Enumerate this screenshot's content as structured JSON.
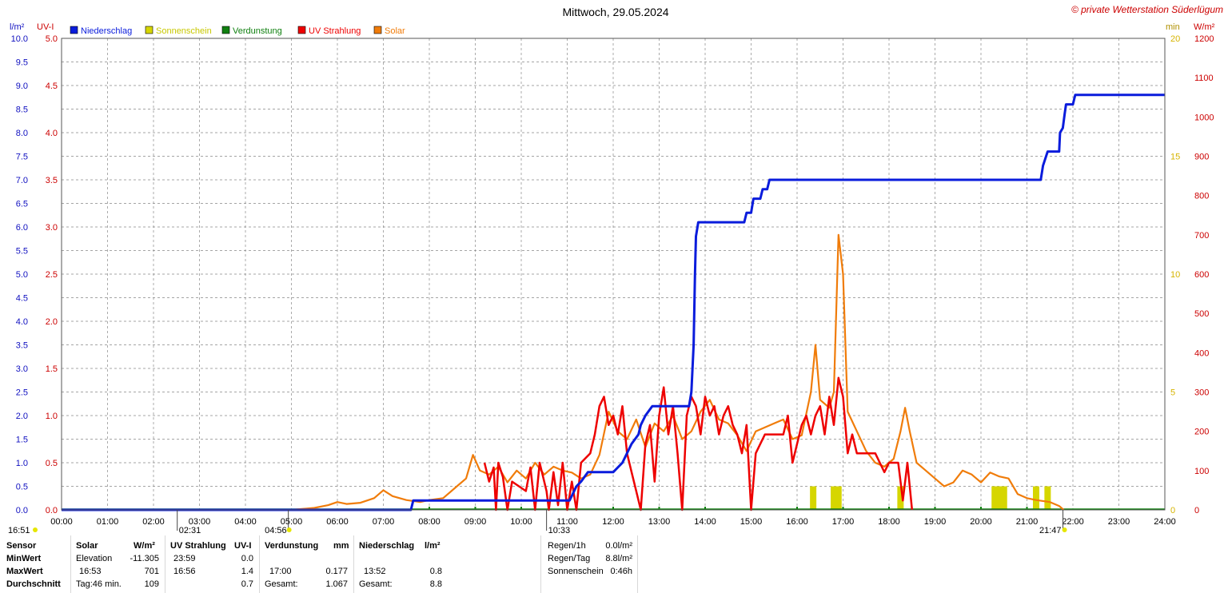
{
  "title": "Mittwoch, 29.05.2024",
  "copyright": "© private Wetterstation Süderlügum",
  "colors": {
    "niederschlag": "#0a1cdc",
    "sonnenschein": "#d6d600",
    "verdunstung": "#108010",
    "uv": "#ee0000",
    "solar": "#f07c0a",
    "grid": "#888888",
    "axis_left1": "#1010c0",
    "axis_left2": "#cc0000",
    "axis_right1": "#d6b400",
    "axis_right2": "#cc0000"
  },
  "legend": [
    {
      "label": "Niederschlag",
      "color": "#0a1cdc"
    },
    {
      "label": "Sonnenschein",
      "color": "#d6d600"
    },
    {
      "label": "Verdunstung",
      "color": "#108010"
    },
    {
      "label": "UV Strahlung",
      "color": "#ee0000"
    },
    {
      "label": "Solar",
      "color": "#f07c0a"
    }
  ],
  "axes": {
    "left1_title": "l/m²",
    "left2_title": "UV-I",
    "right1_title": "min",
    "right2_title": "W/m²",
    "left1_ticks": [
      "10.0",
      "9.5",
      "9.0",
      "8.5",
      "8.0",
      "7.5",
      "7.0",
      "6.5",
      "6.0",
      "5.5",
      "5.0",
      "4.5",
      "4.0",
      "3.5",
      "3.0",
      "2.5",
      "2.0",
      "1.5",
      "1.0",
      "0.5",
      "0.0"
    ],
    "left2_ticks": [
      "5.0",
      "4.5",
      "4.0",
      "3.5",
      "3.0",
      "2.5",
      "2.0",
      "1.5",
      "1.0",
      "0.5",
      "0.0"
    ],
    "right1_ticks": [
      "20",
      "15",
      "10",
      "5",
      "0"
    ],
    "right2_ticks": [
      "1200",
      "1100",
      "1000",
      "900",
      "800",
      "700",
      "600",
      "500",
      "400",
      "300",
      "200",
      "100",
      "0"
    ],
    "x_ticks": [
      "00:00",
      "01:00",
      "02:00",
      "03:00",
      "04:00",
      "05:00",
      "06:00",
      "07:00",
      "08:00",
      "09:00",
      "10:00",
      "11:00",
      "12:00",
      "13:00",
      "14:00",
      "15:00",
      "16:00",
      "17:00",
      "18:00",
      "19:00",
      "20:00",
      "21:00",
      "22:00",
      "23:00",
      "24:00"
    ]
  },
  "markers": {
    "sunrise": "04:56",
    "sunset": "21:47",
    "dawn_start": "16:51",
    "moon_marker": "02:31",
    "noon_marker": "10:33"
  },
  "chart_data": {
    "type": "line",
    "title": "Mittwoch, 29.05.2024",
    "x_unit": "hours",
    "xlim": [
      0,
      24
    ],
    "series": [
      {
        "name": "Niederschlag",
        "unit": "l/m²",
        "axis": "left1",
        "ylim": [
          0,
          10
        ],
        "points": [
          [
            0,
            0
          ],
          [
            7.6,
            0
          ],
          [
            7.65,
            0.2
          ],
          [
            11.05,
            0.2
          ],
          [
            11.1,
            0.3
          ],
          [
            11.2,
            0.5
          ],
          [
            11.3,
            0.6
          ],
          [
            11.45,
            0.8
          ],
          [
            11.95,
            0.8
          ],
          [
            12.0,
            0.8
          ],
          [
            12.2,
            1.0
          ],
          [
            12.4,
            1.4
          ],
          [
            12.55,
            1.6
          ],
          [
            12.6,
            1.8
          ],
          [
            12.7,
            2.0
          ],
          [
            12.85,
            2.2
          ],
          [
            13.65,
            2.2
          ],
          [
            13.7,
            2.5
          ],
          [
            13.75,
            3.5
          ],
          [
            13.78,
            5.0
          ],
          [
            13.8,
            5.8
          ],
          [
            13.85,
            6.1
          ],
          [
            14.85,
            6.1
          ],
          [
            14.9,
            6.3
          ],
          [
            15.0,
            6.3
          ],
          [
            15.05,
            6.6
          ],
          [
            15.2,
            6.6
          ],
          [
            15.25,
            6.8
          ],
          [
            15.35,
            6.8
          ],
          [
            15.4,
            7.0
          ],
          [
            21.3,
            7.0
          ],
          [
            21.35,
            7.3
          ],
          [
            21.45,
            7.6
          ],
          [
            21.7,
            7.6
          ],
          [
            21.72,
            8.0
          ],
          [
            21.78,
            8.1
          ],
          [
            21.82,
            8.4
          ],
          [
            21.85,
            8.6
          ],
          [
            22.0,
            8.6
          ],
          [
            22.05,
            8.8
          ],
          [
            24,
            8.8
          ]
        ]
      },
      {
        "name": "UV Strahlung",
        "unit": "UV-I",
        "axis": "left2",
        "ylim": [
          0,
          5
        ],
        "points": [
          [
            9.2,
            0.5
          ],
          [
            9.3,
            0.3
          ],
          [
            9.4,
            0.45
          ],
          [
            9.45,
            0.0
          ],
          [
            9.5,
            0.5
          ],
          [
            9.6,
            0.35
          ],
          [
            9.7,
            0.0
          ],
          [
            9.8,
            0.3
          ],
          [
            10.1,
            0.2
          ],
          [
            10.2,
            0.45
          ],
          [
            10.3,
            0.0
          ],
          [
            10.4,
            0.5
          ],
          [
            10.55,
            0.2
          ],
          [
            10.6,
            0.0
          ],
          [
            10.7,
            0.4
          ],
          [
            10.8,
            0.05
          ],
          [
            10.9,
            0.5
          ],
          [
            11.0,
            0.0
          ],
          [
            11.1,
            0.3
          ],
          [
            11.2,
            0.0
          ],
          [
            11.3,
            0.5
          ],
          [
            11.5,
            0.6
          ],
          [
            11.6,
            0.8
          ],
          [
            11.7,
            1.1
          ],
          [
            11.8,
            1.2
          ],
          [
            11.9,
            0.9
          ],
          [
            12.0,
            1.0
          ],
          [
            12.1,
            0.8
          ],
          [
            12.2,
            1.1
          ],
          [
            12.3,
            0.6
          ],
          [
            12.4,
            0.4
          ],
          [
            12.5,
            0.2
          ],
          [
            12.6,
            0.0
          ],
          [
            12.7,
            0.7
          ],
          [
            12.8,
            0.9
          ],
          [
            12.9,
            0.3
          ],
          [
            13.0,
            1.0
          ],
          [
            13.1,
            1.3
          ],
          [
            13.2,
            0.8
          ],
          [
            13.3,
            1.1
          ],
          [
            13.4,
            0.6
          ],
          [
            13.5,
            0.0
          ],
          [
            13.6,
            1.0
          ],
          [
            13.7,
            1.2
          ],
          [
            13.8,
            1.1
          ],
          [
            13.9,
            0.8
          ],
          [
            14.0,
            1.2
          ],
          [
            14.1,
            1.0
          ],
          [
            14.2,
            1.1
          ],
          [
            14.3,
            0.8
          ],
          [
            14.4,
            1.0
          ],
          [
            14.5,
            1.1
          ],
          [
            14.6,
            0.9
          ],
          [
            14.7,
            0.8
          ],
          [
            14.8,
            0.6
          ],
          [
            14.9,
            0.9
          ],
          [
            15.0,
            0.0
          ],
          [
            15.1,
            0.6
          ],
          [
            15.2,
            0.7
          ],
          [
            15.3,
            0.8
          ],
          [
            15.5,
            0.8
          ],
          [
            15.7,
            0.8
          ],
          [
            15.8,
            1.0
          ],
          [
            15.9,
            0.5
          ],
          [
            16.0,
            0.7
          ],
          [
            16.1,
            0.9
          ],
          [
            16.2,
            1.0
          ],
          [
            16.3,
            0.8
          ],
          [
            16.4,
            1.0
          ],
          [
            16.5,
            1.1
          ],
          [
            16.6,
            0.8
          ],
          [
            16.7,
            1.2
          ],
          [
            16.8,
            0.9
          ],
          [
            16.9,
            1.4
          ],
          [
            17.0,
            1.2
          ],
          [
            17.1,
            0.6
          ],
          [
            17.2,
            0.8
          ],
          [
            17.3,
            0.6
          ],
          [
            17.5,
            0.6
          ],
          [
            17.7,
            0.6
          ],
          [
            17.8,
            0.5
          ],
          [
            17.9,
            0.4
          ],
          [
            18.0,
            0.5
          ],
          [
            18.2,
            0.5
          ],
          [
            18.3,
            0.1
          ],
          [
            18.4,
            0.5
          ],
          [
            18.5,
            0.0
          ]
        ]
      },
      {
        "name": "Solar",
        "unit": "W/m²",
        "axis": "right2",
        "ylim": [
          0,
          1200
        ],
        "points": [
          [
            5.0,
            0
          ],
          [
            5.5,
            5
          ],
          [
            5.8,
            12
          ],
          [
            6.0,
            20
          ],
          [
            6.2,
            15
          ],
          [
            6.5,
            18
          ],
          [
            6.8,
            30
          ],
          [
            7.0,
            50
          ],
          [
            7.2,
            35
          ],
          [
            7.5,
            25
          ],
          [
            7.8,
            20
          ],
          [
            8.0,
            25
          ],
          [
            8.3,
            30
          ],
          [
            8.6,
            60
          ],
          [
            8.8,
            80
          ],
          [
            8.95,
            140
          ],
          [
            9.1,
            100
          ],
          [
            9.3,
            90
          ],
          [
            9.5,
            110
          ],
          [
            9.7,
            70
          ],
          [
            9.9,
            100
          ],
          [
            10.1,
            80
          ],
          [
            10.3,
            120
          ],
          [
            10.5,
            90
          ],
          [
            10.7,
            110
          ],
          [
            10.9,
            100
          ],
          [
            11.1,
            95
          ],
          [
            11.3,
            80
          ],
          [
            11.5,
            90
          ],
          [
            11.7,
            140
          ],
          [
            11.9,
            250
          ],
          [
            12.1,
            200
          ],
          [
            12.3,
            180
          ],
          [
            12.5,
            230
          ],
          [
            12.7,
            160
          ],
          [
            12.9,
            220
          ],
          [
            13.1,
            200
          ],
          [
            13.3,
            240
          ],
          [
            13.5,
            180
          ],
          [
            13.7,
            200
          ],
          [
            13.9,
            250
          ],
          [
            14.1,
            280
          ],
          [
            14.3,
            230
          ],
          [
            14.5,
            220
          ],
          [
            14.7,
            190
          ],
          [
            14.9,
            150
          ],
          [
            15.1,
            200
          ],
          [
            15.3,
            210
          ],
          [
            15.5,
            220
          ],
          [
            15.7,
            230
          ],
          [
            15.9,
            180
          ],
          [
            16.1,
            190
          ],
          [
            16.3,
            300
          ],
          [
            16.4,
            420
          ],
          [
            16.5,
            280
          ],
          [
            16.7,
            260
          ],
          [
            16.8,
            300
          ],
          [
            16.9,
            700
          ],
          [
            17.0,
            600
          ],
          [
            17.1,
            250
          ],
          [
            17.3,
            200
          ],
          [
            17.5,
            150
          ],
          [
            17.7,
            120
          ],
          [
            17.9,
            110
          ],
          [
            18.1,
            130
          ],
          [
            18.25,
            200
          ],
          [
            18.35,
            260
          ],
          [
            18.45,
            200
          ],
          [
            18.6,
            120
          ],
          [
            18.8,
            100
          ],
          [
            19.0,
            80
          ],
          [
            19.2,
            60
          ],
          [
            19.4,
            70
          ],
          [
            19.6,
            100
          ],
          [
            19.8,
            90
          ],
          [
            20.0,
            70
          ],
          [
            20.2,
            95
          ],
          [
            20.4,
            85
          ],
          [
            20.6,
            80
          ],
          [
            20.8,
            40
          ],
          [
            21.0,
            30
          ],
          [
            21.2,
            25
          ],
          [
            21.5,
            20
          ],
          [
            21.7,
            10
          ],
          [
            21.8,
            0
          ]
        ]
      },
      {
        "name": "Sonnenschein",
        "unit": "min",
        "axis": "right1",
        "ylim": [
          0,
          20
        ],
        "bars": [
          [
            16.35,
            1
          ],
          [
            16.8,
            1
          ],
          [
            16.9,
            1
          ],
          [
            18.25,
            1
          ],
          [
            20.3,
            1
          ],
          [
            20.4,
            1
          ],
          [
            20.5,
            1
          ],
          [
            21.2,
            1
          ],
          [
            21.45,
            1
          ]
        ]
      },
      {
        "name": "Verdunstung",
        "unit": "mm",
        "axis": "left1",
        "ylim": [
          0,
          10
        ],
        "ticks": [
          8.0,
          9.0,
          10.0,
          11.0,
          12.0,
          13.0,
          14.0,
          15.0,
          16.0,
          17.0,
          18.0,
          19.0,
          20.0,
          21.0
        ]
      }
    ]
  },
  "stats": {
    "col0": {
      "r1": "Sensor",
      "r2": "MinWert",
      "r3": "MaxWert",
      "r4": "Durchschnitt"
    },
    "col1": {
      "h1": "Solar",
      "h2": "W/m²",
      "r2a": "Elevation",
      "r2b": "-11.305",
      "r3a": "16:53",
      "r3b": "701",
      "r4a": "Tag:46 min.",
      "r4b": "109"
    },
    "col2": {
      "h1": "UV Strahlung",
      "h2": "UV-I",
      "r2a": "23:59",
      "r2b": "0.0",
      "r3a": "16:56",
      "r3b": "1.4",
      "r4b": "0.7"
    },
    "col3": {
      "h1": "Verdunstung",
      "h2": "mm",
      "r3a": "17:00",
      "r3b": "0.177",
      "r4a": "Gesamt:",
      "r4b": "1.067"
    },
    "col4": {
      "h1": "Niederschlag",
      "h2": "l/m²",
      "r3a": "13:52",
      "r3b": "0.8",
      "r4a": "Gesamt:",
      "r4b": "8.8"
    },
    "col5": {
      "r1a": "Regen/1h",
      "r1b": "0.0l/m²",
      "r2a": "Regen/Tag",
      "r2b": "8.8l/m²",
      "r3a": "Sonnenschein",
      "r3b": "0:46h"
    }
  }
}
